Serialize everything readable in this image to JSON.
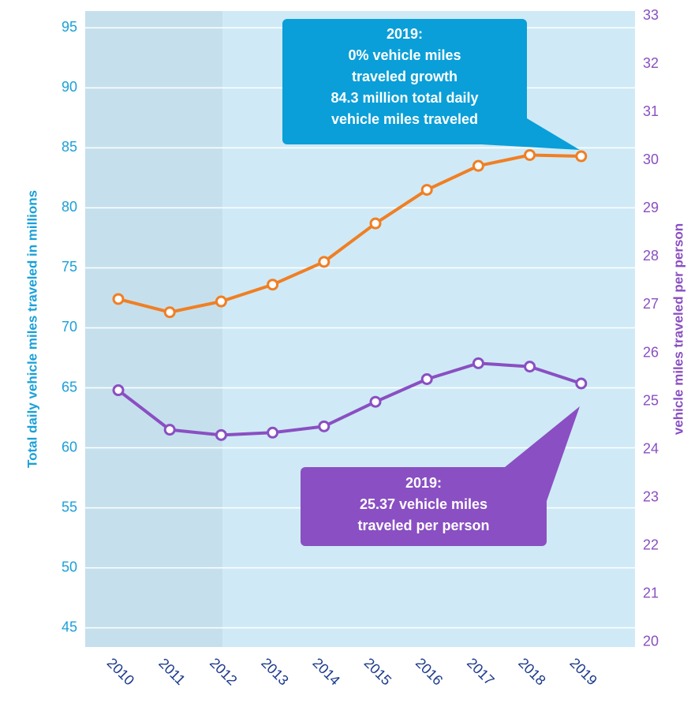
{
  "chart_data": {
    "type": "line",
    "categories": [
      "2010",
      "2011",
      "2012",
      "2013",
      "2014",
      "2015",
      "2016",
      "2017",
      "2018",
      "2019"
    ],
    "series": [
      {
        "name": "Total daily vehicle miles traveled in millions",
        "color": "#f07f24",
        "axis": "y",
        "values": [
          72.4,
          71.3,
          72.2,
          73.6,
          75.5,
          78.7,
          81.5,
          83.5,
          84.4,
          84.3
        ]
      },
      {
        "name": "vehicle miles traveled per person",
        "color": "#8a4fc2",
        "axis": "y2",
        "values": [
          25.23,
          24.41,
          24.3,
          24.35,
          24.48,
          24.99,
          25.46,
          25.79,
          25.72,
          25.37
        ]
      }
    ],
    "ylabel": "Total daily vehicle miles traveled in millions",
    "y2label": "vehicle miles traveled per person",
    "ylim": [
      43.4,
      96.4
    ],
    "yticks": [
      45,
      50,
      55,
      60,
      65,
      70,
      75,
      80,
      85,
      90,
      95
    ],
    "y2lim": [
      19.9,
      33.1
    ],
    "y2ticks": [
      20,
      21,
      22,
      23,
      24,
      25,
      26,
      27,
      28,
      29,
      30,
      31,
      32,
      33
    ],
    "grid": true,
    "annotations": [
      {
        "lines": [
          "2019:",
          "0% vehicle miles",
          "traveled growth",
          "84.3 million total daily",
          "vehicle miles traveled"
        ],
        "color": "#0a9fd8"
      },
      {
        "lines": [
          "2019:",
          "25.37 vehicle miles",
          "traveled per person"
        ],
        "color": "#8a4fc2"
      }
    ]
  }
}
